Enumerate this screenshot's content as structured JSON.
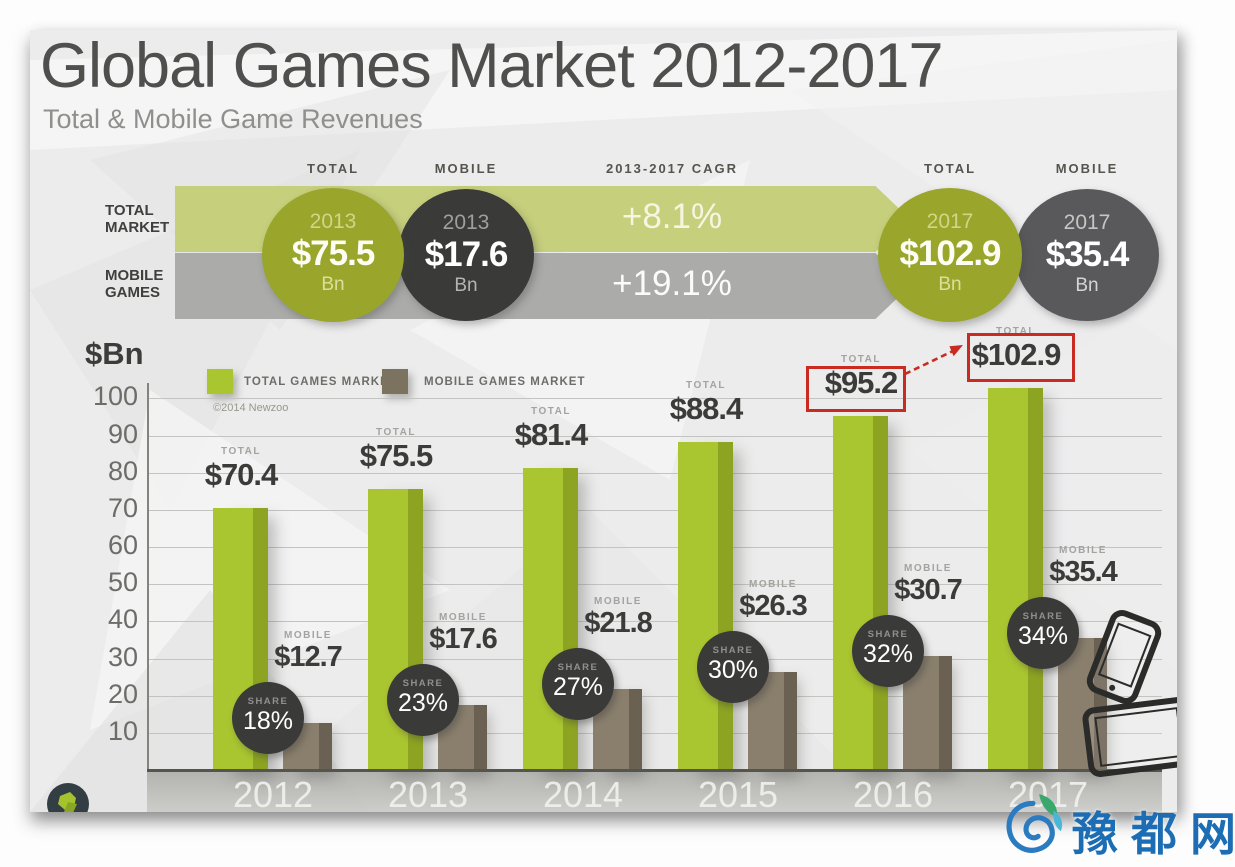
{
  "infographic": {
    "title": "Global Games Market 2012-2017",
    "subtitle": "Total & Mobile Game Revenues",
    "copyright": "©2014 Newzoo",
    "ylabel": "$Bn",
    "summary": {
      "row_labels": {
        "total_line1": "TOTAL",
        "total_line2": "MARKET",
        "mobile_line1": "MOBILE",
        "mobile_line2": "GAMES"
      },
      "columns": {
        "total_2013": "TOTAL",
        "mobile_2013": "MOBILE",
        "cagr": "2013-2017 CAGR",
        "total_2017": "TOTAL",
        "mobile_2017": "MOBILE"
      },
      "cagr": {
        "total": "+8.1%",
        "mobile": "+19.1%"
      },
      "circles": {
        "total_2013": {
          "year": "2013",
          "value": "$75.5",
          "unit": "Bn"
        },
        "mobile_2013": {
          "year": "2013",
          "value": "$17.6",
          "unit": "Bn"
        },
        "total_2017": {
          "year": "2017",
          "value": "$102.9",
          "unit": "Bn"
        },
        "mobile_2017": {
          "year": "2017",
          "value": "$35.4",
          "unit": "Bn"
        }
      }
    },
    "legend": {
      "total": "TOTAL GAMES MARKET",
      "mobile": "MOBILE GAMES MARKET"
    }
  },
  "chart_data": {
    "type": "bar",
    "title": "Global Games Market 2012-2017",
    "subtitle": "Total & Mobile Game Revenues",
    "ylabel": "$Bn",
    "ylim": [
      0,
      105
    ],
    "yticks": [
      10,
      20,
      30,
      40,
      50,
      60,
      70,
      80,
      90,
      100
    ],
    "grid": true,
    "legend_position": "top-left",
    "categories": [
      "2012",
      "2013",
      "2014",
      "2015",
      "2016",
      "2017"
    ],
    "series": [
      {
        "name": "TOTAL GAMES MARKET",
        "color": "#a9c52f",
        "values": [
          70.4,
          75.5,
          81.4,
          88.4,
          95.2,
          102.9
        ],
        "labels": [
          "$70.4",
          "$75.5",
          "$81.4",
          "$88.4",
          "$95.2",
          "$102.9"
        ]
      },
      {
        "name": "MOBILE GAMES MARKET",
        "color": "#8a7f6d",
        "values": [
          12.7,
          17.6,
          21.8,
          26.3,
          30.7,
          35.4
        ],
        "labels": [
          "$12.7",
          "$17.6",
          "$21.8",
          "$26.3",
          "$30.7",
          "$35.4"
        ]
      }
    ],
    "bar_label_headers": {
      "total": "TOTAL",
      "mobile": "MOBILE"
    },
    "share_labels": {
      "label": "SHARE",
      "values": [
        "18%",
        "23%",
        "27%",
        "30%",
        "32%",
        "34%"
      ]
    },
    "annotations": {
      "highlighted_totals": [
        "$95.2",
        "$102.9"
      ],
      "highlight_years": [
        "2016",
        "2017"
      ]
    },
    "cagr_2013_2017": {
      "total": "+8.1%",
      "mobile": "+19.1%"
    }
  },
  "colors": {
    "accent_green": "#a9c52f",
    "dark_circle": "#3a3a38",
    "mobile_brown": "#8a7f6d",
    "band_green": "#c6cf7c",
    "band_gray": "#ababa9",
    "highlight_red": "#c92a21",
    "watermark_blue": "#1d6db4"
  },
  "watermark": {
    "text": "豫都网"
  }
}
